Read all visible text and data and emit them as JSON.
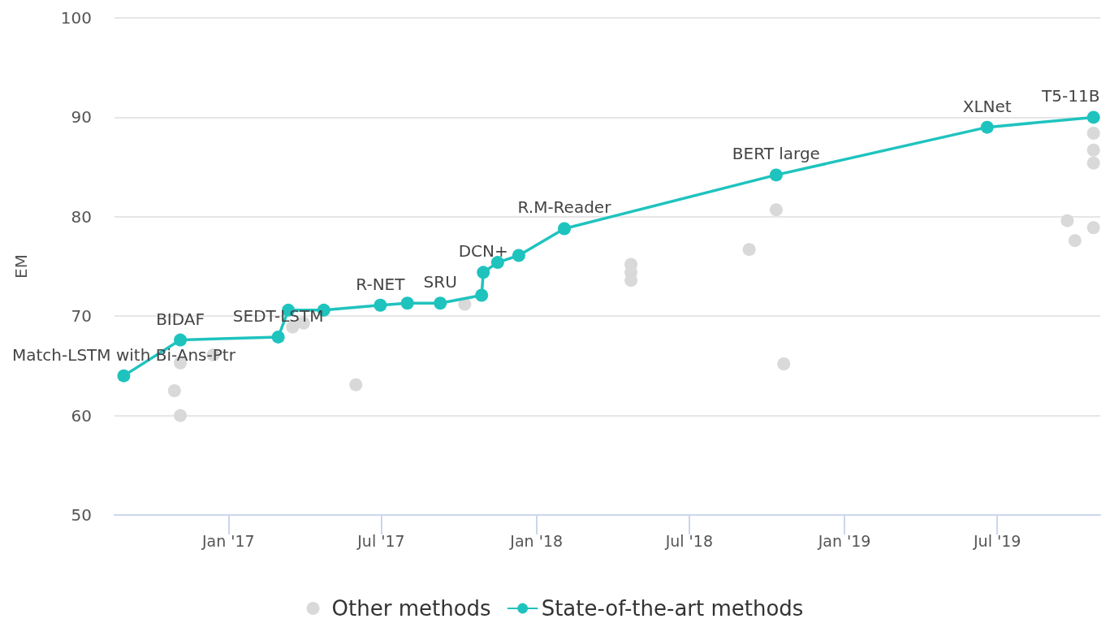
{
  "chart_data": {
    "type": "scatter",
    "ylabel": "EM",
    "xlim": [
      "2016-08-19",
      "2019-10-31"
    ],
    "xticks": [
      {
        "value": "2017-01-01",
        "label": "Jan '17"
      },
      {
        "value": "2017-07-01",
        "label": "Jul '17"
      },
      {
        "value": "2018-01-01",
        "label": "Jan '18"
      },
      {
        "value": "2018-07-01",
        "label": "Jul '18"
      },
      {
        "value": "2019-01-01",
        "label": "Jan '19"
      },
      {
        "value": "2019-07-01",
        "label": "Jul '19"
      }
    ],
    "ylim": [
      50,
      100
    ],
    "yticks": [
      50,
      60,
      70,
      80,
      90,
      100
    ],
    "grid": "y",
    "legend": "bottom",
    "marker": "circle",
    "series": [
      {
        "name": "Other methods",
        "color": "#d9d9d9",
        "x": [
          "2016-10-29",
          "2016-11-05",
          "2016-11-05",
          "2016-12-14",
          "2017-03-18",
          "2017-03-31",
          "2017-06-01",
          "2017-10-08",
          "2018-04-23",
          "2018-04-23",
          "2018-04-23",
          "2018-09-10",
          "2018-10-12",
          "2018-10-21",
          "2019-09-22",
          "2019-10-01",
          "2019-10-23",
          "2019-10-23",
          "2019-10-23",
          "2019-10-23"
        ],
        "values": [
          62.5,
          60.0,
          65.3,
          66.1,
          68.9,
          69.3,
          63.1,
          71.2,
          75.2,
          74.4,
          73.6,
          76.7,
          80.7,
          65.2,
          79.6,
          77.6,
          88.4,
          86.7,
          85.4,
          78.9
        ]
      },
      {
        "name": "State-of-the-art methods",
        "type": "line",
        "color": "#1fc3be",
        "x": [
          "2016-08-30",
          "2016-11-05",
          "2017-03-01",
          "2017-03-13",
          "2017-04-24",
          "2017-06-30",
          "2017-08-01",
          "2017-09-09",
          "2017-10-28",
          "2017-10-30",
          "2017-11-16",
          "2017-12-11",
          "2018-02-03",
          "2018-10-12",
          "2019-06-19",
          "2019-10-23"
        ],
        "values": [
          64.0,
          67.6,
          67.9,
          70.6,
          70.6,
          71.1,
          71.3,
          71.3,
          72.1,
          74.4,
          75.4,
          76.1,
          78.8,
          84.2,
          89.0,
          90.0
        ]
      }
    ],
    "annotations": [
      {
        "text": "Match-LSTM with Bi-Ans-Ptr",
        "x": "2016-08-30",
        "y": 64.0
      },
      {
        "text": "BIDAF",
        "x": "2016-11-05",
        "y": 67.6
      },
      {
        "text": "SEDT-LSTM",
        "x": "2017-03-01",
        "y": 67.9
      },
      {
        "text": "R-NET",
        "x": "2017-06-30",
        "y": 71.1
      },
      {
        "text": "SRU",
        "x": "2017-09-09",
        "y": 71.3
      },
      {
        "text": "DCN+",
        "x": "2017-10-30",
        "y": 74.4
      },
      {
        "text": "R.M-Reader",
        "x": "2018-02-03",
        "y": 78.8
      },
      {
        "text": "BERT large",
        "x": "2018-10-12",
        "y": 84.2
      },
      {
        "text": "XLNet",
        "x": "2019-06-19",
        "y": 89.0
      },
      {
        "text": "T5-11B",
        "x": "2019-10-23",
        "y": 90.0
      }
    ]
  }
}
